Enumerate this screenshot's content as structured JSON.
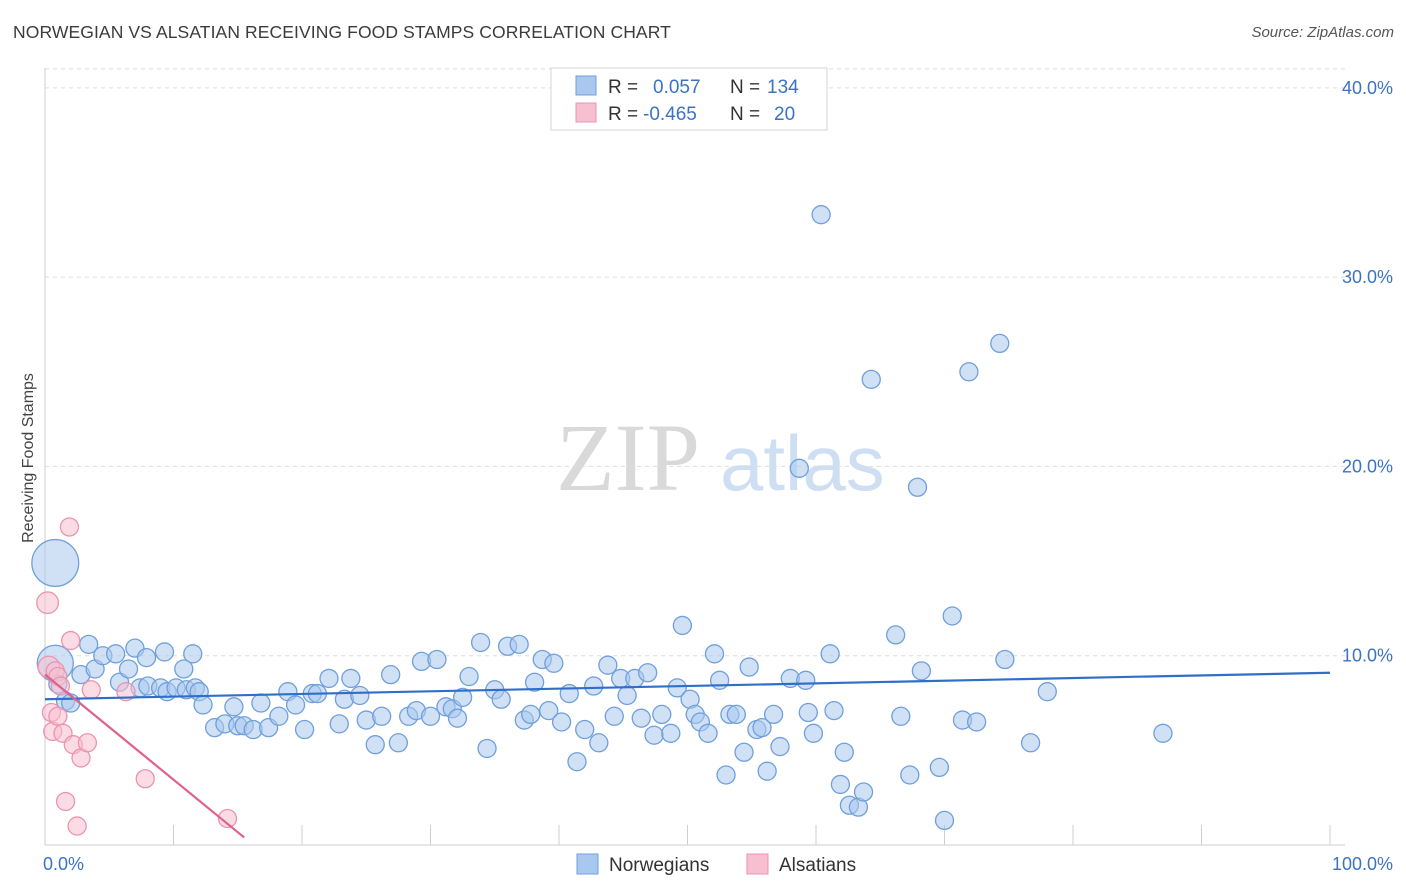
{
  "title": "NORWEGIAN VS ALSATIAN RECEIVING FOOD STAMPS CORRELATION CHART",
  "source": "Source: ZipAtlas.com",
  "watermark": {
    "zip": "ZIP",
    "atlas": "atlas"
  },
  "colors": {
    "norwegian_fill": "#a9c8ef",
    "norwegian_stroke": "#6f9fdc",
    "norwegian_line": "#2f6fc8",
    "alsatian_fill": "#f7bfd0",
    "alsatian_stroke": "#ec93b0",
    "alsatian_line": "#e0608e",
    "tick_text": "#3b73c4",
    "grid": "#dddddd"
  },
  "legend": {
    "rows": [
      {
        "r_label": "R =",
        "r_value": "0.057",
        "n_label": "N =",
        "n_value": "134"
      },
      {
        "r_label": "R =",
        "r_value": "-0.465",
        "n_label": "N =",
        "n_value": "20"
      }
    ]
  },
  "chart_data": {
    "type": "scatter",
    "title": "NORWEGIAN VS ALSATIAN RECEIVING FOOD STAMPS CORRELATION CHART",
    "xlabel": "",
    "ylabel": "Receiving Food Stamps",
    "xlim": [
      0,
      100
    ],
    "ylim": [
      0,
      42
    ],
    "x_tick_labels": [
      "0.0%",
      "100.0%"
    ],
    "y_ticks": [
      10,
      20,
      30,
      40
    ],
    "y_tick_labels": [
      "10.0%",
      "20.0%",
      "30.0%",
      "40.0%"
    ],
    "grid": true,
    "series": [
      {
        "name": "Norwegians",
        "r": 0.057,
        "n": 134,
        "trend": {
          "x": [
            0,
            100
          ],
          "y": [
            7.7,
            9.1
          ]
        },
        "points": [
          [
            0.8,
            14.9,
            2.6
          ],
          [
            0.8,
            9.6,
            2.0
          ],
          [
            1.0,
            8.5,
            1.0
          ],
          [
            1.6,
            7.6,
            1.0
          ],
          [
            2.0,
            7.5,
            1.0
          ],
          [
            2.8,
            9.0,
            1.0
          ],
          [
            3.4,
            10.6,
            1.0
          ],
          [
            3.9,
            9.3,
            1.0
          ],
          [
            4.5,
            10.0,
            1.0
          ],
          [
            5.5,
            10.1,
            1.0
          ],
          [
            5.8,
            8.6,
            1.0
          ],
          [
            6.5,
            9.3,
            1.0
          ],
          [
            7.0,
            10.4,
            1.0
          ],
          [
            7.4,
            8.3,
            1.0
          ],
          [
            7.9,
            9.9,
            1.0
          ],
          [
            8.0,
            8.4,
            1.0
          ],
          [
            9.0,
            8.3,
            1.0
          ],
          [
            9.3,
            10.2,
            1.0
          ],
          [
            9.5,
            8.1,
            1.0
          ],
          [
            10.2,
            8.3,
            1.0
          ],
          [
            10.8,
            9.3,
            1.0
          ],
          [
            11.0,
            8.2,
            1.0
          ],
          [
            11.5,
            10.1,
            1.0
          ],
          [
            11.7,
            8.3,
            1.0
          ],
          [
            12.0,
            8.1,
            1.0
          ],
          [
            12.3,
            7.4,
            1.0
          ],
          [
            13.2,
            6.2,
            1.0
          ],
          [
            14.0,
            6.4,
            1.0
          ],
          [
            14.7,
            7.3,
            1.0
          ],
          [
            15.0,
            6.3,
            1.0
          ],
          [
            15.5,
            6.3,
            1.0
          ],
          [
            16.2,
            6.1,
            1.0
          ],
          [
            16.8,
            7.5,
            1.0
          ],
          [
            17.4,
            6.2,
            1.0
          ],
          [
            18.2,
            6.8,
            1.0
          ],
          [
            18.9,
            8.1,
            1.0
          ],
          [
            19.5,
            7.4,
            1.0
          ],
          [
            20.2,
            6.1,
            1.0
          ],
          [
            20.8,
            8.0,
            1.0
          ],
          [
            21.2,
            8.0,
            1.0
          ],
          [
            22.1,
            8.8,
            1.0
          ],
          [
            22.9,
            6.4,
            1.0
          ],
          [
            23.3,
            7.7,
            1.0
          ],
          [
            23.8,
            8.8,
            1.0
          ],
          [
            24.5,
            7.9,
            1.0
          ],
          [
            25.0,
            6.6,
            1.0
          ],
          [
            25.7,
            5.3,
            1.0
          ],
          [
            26.2,
            6.8,
            1.0
          ],
          [
            26.9,
            9.0,
            1.0
          ],
          [
            27.5,
            5.4,
            1.0
          ],
          [
            28.3,
            6.8,
            1.0
          ],
          [
            28.9,
            7.1,
            1.0
          ],
          [
            29.3,
            9.7,
            1.0
          ],
          [
            30.0,
            6.8,
            1.0
          ],
          [
            30.5,
            9.8,
            1.0
          ],
          [
            31.2,
            7.3,
            1.0
          ],
          [
            31.7,
            7.2,
            1.0
          ],
          [
            32.1,
            6.7,
            1.0
          ],
          [
            32.5,
            7.8,
            1.0
          ],
          [
            33.0,
            8.9,
            1.0
          ],
          [
            33.9,
            10.7,
            1.0
          ],
          [
            34.4,
            5.1,
            1.0
          ],
          [
            35.0,
            8.2,
            1.0
          ],
          [
            35.5,
            7.7,
            1.0
          ],
          [
            36.0,
            10.5,
            1.0
          ],
          [
            36.9,
            10.6,
            1.0
          ],
          [
            37.3,
            6.6,
            1.0
          ],
          [
            37.8,
            6.9,
            1.0
          ],
          [
            38.1,
            8.6,
            1.0
          ],
          [
            38.7,
            9.8,
            1.0
          ],
          [
            39.2,
            7.1,
            1.0
          ],
          [
            39.6,
            9.6,
            1.0
          ],
          [
            40.2,
            6.5,
            1.0
          ],
          [
            40.8,
            8.0,
            1.0
          ],
          [
            41.4,
            4.4,
            1.0
          ],
          [
            42.0,
            6.1,
            1.0
          ],
          [
            42.7,
            8.4,
            1.0
          ],
          [
            43.1,
            5.4,
            1.0
          ],
          [
            43.8,
            9.5,
            1.0
          ],
          [
            44.3,
            6.8,
            1.0
          ],
          [
            44.8,
            8.8,
            1.0
          ],
          [
            45.3,
            7.9,
            1.0
          ],
          [
            45.9,
            8.8,
            1.0
          ],
          [
            46.4,
            6.7,
            1.0
          ],
          [
            46.9,
            9.1,
            1.0
          ],
          [
            47.4,
            5.8,
            1.0
          ],
          [
            48.0,
            6.9,
            1.0
          ],
          [
            48.7,
            5.9,
            1.0
          ],
          [
            49.2,
            8.3,
            1.0
          ],
          [
            49.6,
            11.6,
            1.0
          ],
          [
            50.2,
            7.7,
            1.0
          ],
          [
            50.6,
            6.9,
            1.0
          ],
          [
            51.0,
            6.5,
            1.0
          ],
          [
            51.6,
            5.9,
            1.0
          ],
          [
            52.1,
            10.1,
            1.0
          ],
          [
            52.5,
            8.7,
            1.0
          ],
          [
            53.0,
            3.7,
            1.0
          ],
          [
            53.3,
            6.9,
            1.0
          ],
          [
            53.8,
            6.9,
            1.0
          ],
          [
            54.4,
            4.9,
            1.0
          ],
          [
            54.8,
            9.4,
            1.0
          ],
          [
            55.4,
            6.1,
            1.0
          ],
          [
            55.8,
            6.2,
            1.0
          ],
          [
            56.2,
            3.9,
            1.0
          ],
          [
            56.7,
            6.9,
            1.0
          ],
          [
            57.2,
            5.2,
            1.0
          ],
          [
            58.0,
            8.8,
            1.0
          ],
          [
            58.7,
            19.9,
            1.0
          ],
          [
            59.2,
            8.7,
            1.0
          ],
          [
            59.4,
            7.0,
            1.0
          ],
          [
            59.8,
            5.9,
            1.0
          ],
          [
            60.4,
            33.3,
            1.0
          ],
          [
            61.1,
            10.1,
            1.0
          ],
          [
            61.4,
            7.1,
            1.0
          ],
          [
            61.9,
            3.2,
            1.0
          ],
          [
            62.2,
            4.9,
            1.0
          ],
          [
            62.6,
            2.1,
            1.0
          ],
          [
            63.3,
            2.0,
            1.0
          ],
          [
            63.7,
            2.8,
            1.0
          ],
          [
            64.3,
            24.6,
            1.0
          ],
          [
            66.2,
            11.1,
            1.0
          ],
          [
            66.6,
            6.8,
            1.0
          ],
          [
            67.3,
            3.7,
            1.0
          ],
          [
            67.9,
            18.9,
            1.0
          ],
          [
            68.2,
            9.2,
            1.0
          ],
          [
            69.6,
            4.1,
            1.0
          ],
          [
            70.0,
            1.3,
            1.0
          ],
          [
            70.6,
            12.1,
            1.0
          ],
          [
            71.4,
            6.6,
            1.0
          ],
          [
            71.9,
            25.0,
            1.0
          ],
          [
            72.5,
            6.5,
            1.0
          ],
          [
            74.3,
            26.5,
            1.0
          ],
          [
            74.7,
            9.8,
            1.0
          ],
          [
            76.7,
            5.4,
            1.0
          ],
          [
            78.0,
            8.1,
            1.0
          ],
          [
            87.0,
            5.9,
            1.0
          ]
        ]
      },
      {
        "name": "Alsatians",
        "r": -0.465,
        "n": 20,
        "trend": {
          "x": [
            0,
            15.5
          ],
          "y": [
            9.0,
            0.4
          ]
        },
        "points": [
          [
            0.2,
            12.8,
            1.2
          ],
          [
            0.3,
            9.4,
            1.2
          ],
          [
            0.5,
            7.0,
            1.0
          ],
          [
            0.6,
            6.0,
            1.0
          ],
          [
            0.8,
            9.2,
            1.0
          ],
          [
            1.0,
            8.9,
            1.0
          ],
          [
            1.0,
            6.8,
            1.0
          ],
          [
            1.2,
            8.4,
            1.0
          ],
          [
            1.4,
            5.9,
            1.0
          ],
          [
            1.6,
            2.3,
            1.0
          ],
          [
            1.9,
            16.8,
            1.0
          ],
          [
            2.0,
            10.8,
            1.0
          ],
          [
            2.2,
            5.3,
            1.0
          ],
          [
            2.5,
            1.0,
            1.0
          ],
          [
            2.8,
            4.6,
            1.0
          ],
          [
            3.3,
            5.4,
            1.0
          ],
          [
            3.6,
            8.2,
            1.0
          ],
          [
            6.3,
            8.1,
            1.0
          ],
          [
            7.8,
            3.5,
            1.0
          ],
          [
            14.2,
            1.4,
            1.0
          ]
        ]
      }
    ]
  }
}
